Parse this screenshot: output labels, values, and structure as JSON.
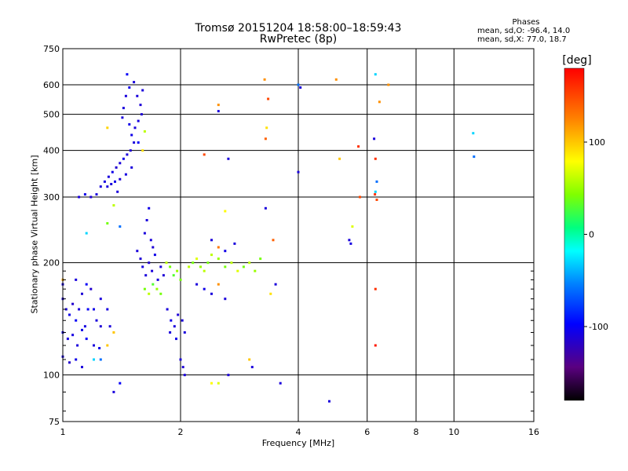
{
  "chart_data": {
    "type": "scatter",
    "title": "Tromsø 20151204 18:58:00–18:59:43",
    "subtitle": "RwPretec (8p)",
    "info": {
      "heading": "Phases",
      "line1": "mean, sd,O: -96.4, 14.0",
      "line2": "mean, sd,X:  77.0, 18.7"
    },
    "xlabel": "Frequency [MHz]",
    "ylabel": "Stationary phase Virtual Height [km]",
    "x_scale": "log",
    "y_scale": "log",
    "xlim": [
      1,
      16
    ],
    "ylim": [
      75,
      750
    ],
    "grid": true,
    "x_ticks": [
      {
        "value": 1,
        "label": "1"
      },
      {
        "value": 2,
        "label": "2"
      },
      {
        "value": 4,
        "label": "4"
      },
      {
        "value": 6,
        "label": "6"
      },
      {
        "value": 8,
        "label": "8"
      },
      {
        "value": 10,
        "label": "10"
      },
      {
        "value": 16,
        "label": "16"
      }
    ],
    "y_ticks": [
      {
        "value": 75,
        "label": "75"
      },
      {
        "value": 100,
        "label": "100"
      },
      {
        "value": 200,
        "label": "200"
      },
      {
        "value": 300,
        "label": "300"
      },
      {
        "value": 400,
        "label": "400"
      },
      {
        "value": 500,
        "label": "500"
      },
      {
        "value": 600,
        "label": "600"
      },
      {
        "value": 750,
        "label": "750"
      }
    ],
    "colorbar": {
      "label": "[deg]",
      "range": [
        -180,
        180
      ],
      "ticks": [
        {
          "value": 100,
          "label": "100"
        },
        {
          "value": 0,
          "label": "0"
        },
        {
          "value": -100,
          "label": "-100"
        }
      ]
    },
    "series": [
      {
        "points": [
          [
            1.0,
            160,
            -110
          ],
          [
            1.02,
            150,
            -110
          ],
          [
            1.04,
            145,
            -105
          ],
          [
            1.06,
            155,
            -115
          ],
          [
            1.08,
            140,
            -100
          ],
          [
            1.1,
            150,
            -110
          ],
          [
            1.12,
            165,
            -112
          ],
          [
            1.14,
            135,
            -108
          ],
          [
            1.16,
            150,
            -100
          ],
          [
            1.18,
            170,
            -115
          ],
          [
            1.0,
            130,
            -105
          ],
          [
            1.03,
            125,
            -110
          ],
          [
            1.06,
            128,
            -108
          ],
          [
            1.09,
            120,
            -110
          ],
          [
            1.12,
            132,
            -105
          ],
          [
            1.15,
            125,
            -100
          ],
          [
            1.0,
            112,
            -110
          ],
          [
            1.04,
            108,
            -115
          ],
          [
            1.08,
            110,
            -105
          ],
          [
            1.12,
            105,
            -110
          ],
          [
            1.2,
            150,
            -105
          ],
          [
            1.22,
            140,
            -110
          ],
          [
            1.25,
            135,
            -112
          ],
          [
            1.2,
            120,
            -110
          ],
          [
            1.24,
            118,
            -105
          ],
          [
            1.08,
            180,
            -110
          ],
          [
            1.15,
            175,
            -100
          ],
          [
            1.25,
            160,
            -110
          ],
          [
            1.3,
            150,
            -108
          ],
          [
            1.32,
            135,
            -110
          ],
          [
            1.1,
            300,
            -110
          ],
          [
            1.14,
            305,
            -105
          ],
          [
            1.18,
            300,
            -112
          ],
          [
            1.22,
            305,
            -110
          ],
          [
            1.25,
            320,
            -110
          ],
          [
            1.28,
            330,
            -108
          ],
          [
            1.31,
            340,
            -110
          ],
          [
            1.34,
            350,
            -105
          ],
          [
            1.37,
            360,
            -115
          ],
          [
            1.3,
            320,
            -110
          ],
          [
            1.33,
            325,
            -110
          ],
          [
            1.36,
            330,
            -105
          ],
          [
            1.4,
            335,
            -112
          ],
          [
            1.4,
            370,
            -110
          ],
          [
            1.43,
            380,
            -105
          ],
          [
            1.46,
            390,
            -110
          ],
          [
            1.49,
            400,
            -112
          ],
          [
            1.52,
            420,
            -110
          ],
          [
            1.5,
            440,
            -105
          ],
          [
            1.53,
            460,
            -110
          ],
          [
            1.56,
            480,
            -108
          ],
          [
            1.59,
            500,
            -112
          ],
          [
            1.56,
            420,
            -100
          ],
          [
            1.43,
            520,
            -110
          ],
          [
            1.45,
            560,
            -110
          ],
          [
            1.48,
            590,
            -105
          ],
          [
            1.55,
            560,
            -110
          ],
          [
            1.58,
            530,
            -112
          ],
          [
            1.46,
            640,
            -100
          ],
          [
            1.52,
            610,
            -110
          ],
          [
            1.6,
            580,
            -110
          ],
          [
            1.62,
            450,
            60
          ],
          [
            1.6,
            400,
            90
          ],
          [
            1.42,
            490,
            -110
          ],
          [
            1.5,
            360,
            -110
          ],
          [
            1.45,
            345,
            -108
          ],
          [
            1.38,
            310,
            -110
          ],
          [
            1.48,
            470,
            -105
          ],
          [
            1.3,
            460,
            95
          ],
          [
            1.35,
            285,
            60
          ],
          [
            1.3,
            255,
            40
          ],
          [
            1.35,
            90,
            -110
          ],
          [
            1.4,
            95,
            -100
          ],
          [
            1.55,
            215,
            -110
          ],
          [
            1.58,
            205,
            -112
          ],
          [
            1.6,
            195,
            -108
          ],
          [
            1.63,
            185,
            -110
          ],
          [
            1.66,
            200,
            -115
          ],
          [
            1.69,
            190,
            -110
          ],
          [
            1.72,
            210,
            -105
          ],
          [
            1.75,
            180,
            -110
          ],
          [
            1.78,
            195,
            -110
          ],
          [
            1.81,
            185,
            -112
          ],
          [
            1.62,
            240,
            -110
          ],
          [
            1.64,
            260,
            -110
          ],
          [
            1.66,
            280,
            -105
          ],
          [
            1.68,
            230,
            -110
          ],
          [
            1.7,
            220,
            -112
          ],
          [
            1.62,
            170,
            40
          ],
          [
            1.66,
            165,
            60
          ],
          [
            1.7,
            175,
            30
          ],
          [
            1.74,
            170,
            50
          ],
          [
            1.78,
            165,
            40
          ],
          [
            1.84,
            200,
            60
          ],
          [
            1.88,
            195,
            40
          ],
          [
            1.92,
            185,
            30
          ],
          [
            1.96,
            190,
            50
          ],
          [
            2.0,
            180,
            40
          ],
          [
            1.85,
            150,
            -110
          ],
          [
            1.89,
            140,
            -105
          ],
          [
            1.93,
            135,
            -110
          ],
          [
            1.97,
            145,
            -112
          ],
          [
            2.02,
            140,
            -110
          ],
          [
            1.88,
            130,
            -110
          ],
          [
            1.95,
            125,
            -105
          ],
          [
            2.05,
            130,
            -110
          ],
          [
            2.0,
            110,
            -110
          ],
          [
            2.03,
            105,
            -112
          ],
          [
            2.05,
            100,
            -110
          ],
          [
            2.1,
            195,
            60
          ],
          [
            2.15,
            200,
            40
          ],
          [
            2.2,
            205,
            70
          ],
          [
            2.25,
            195,
            50
          ],
          [
            2.3,
            190,
            60
          ],
          [
            2.35,
            200,
            40
          ],
          [
            2.4,
            210,
            60
          ],
          [
            2.5,
            205,
            50
          ],
          [
            2.6,
            195,
            40
          ],
          [
            2.7,
            200,
            60
          ],
          [
            2.8,
            190,
            70
          ],
          [
            2.9,
            195,
            40
          ],
          [
            3.0,
            200,
            60
          ],
          [
            3.1,
            190,
            50
          ],
          [
            3.2,
            205,
            40
          ],
          [
            2.2,
            175,
            -110
          ],
          [
            2.3,
            170,
            -105
          ],
          [
            2.4,
            165,
            -110
          ],
          [
            2.5,
            175,
            120
          ],
          [
            2.6,
            160,
            -110
          ],
          [
            2.4,
            230,
            -110
          ],
          [
            2.5,
            220,
            130
          ],
          [
            2.6,
            215,
            -105
          ],
          [
            2.75,
            225,
            -110
          ],
          [
            2.65,
            100,
            -110
          ],
          [
            2.4,
            95,
            80
          ],
          [
            2.5,
            95,
            70
          ],
          [
            3.0,
            110,
            100
          ],
          [
            3.05,
            105,
            -110
          ],
          [
            2.6,
            275,
            80
          ],
          [
            2.3,
            390,
            150
          ],
          [
            2.5,
            530,
            120
          ],
          [
            2.5,
            510,
            -110
          ],
          [
            2.65,
            380,
            -110
          ],
          [
            3.3,
            430,
            140
          ],
          [
            3.32,
            460,
            90
          ],
          [
            3.28,
            620,
            120
          ],
          [
            3.35,
            550,
            150
          ],
          [
            3.3,
            280,
            -110
          ],
          [
            3.45,
            230,
            140
          ],
          [
            3.4,
            165,
            90
          ],
          [
            3.5,
            175,
            -110
          ],
          [
            3.6,
            95,
            -110
          ],
          [
            4.0,
            600,
            -60
          ],
          [
            4.05,
            590,
            -110
          ],
          [
            4.0,
            350,
            -110
          ],
          [
            4.8,
            85,
            -110
          ],
          [
            5.0,
            620,
            120
          ],
          [
            5.1,
            380,
            100
          ],
          [
            5.4,
            230,
            -110
          ],
          [
            5.45,
            225,
            -108
          ],
          [
            5.5,
            250,
            70
          ],
          [
            5.7,
            410,
            160
          ],
          [
            5.75,
            300,
            150
          ],
          [
            6.3,
            640,
            -30
          ],
          [
            6.25,
            430,
            -110
          ],
          [
            6.3,
            380,
            160
          ],
          [
            6.35,
            330,
            -60
          ],
          [
            6.3,
            310,
            -30
          ],
          [
            6.28,
            305,
            160
          ],
          [
            6.35,
            295,
            150
          ],
          [
            6.3,
            170,
            160
          ],
          [
            6.3,
            120,
            170
          ],
          [
            6.8,
            600,
            120
          ],
          [
            6.45,
            540,
            120
          ],
          [
            11.2,
            445,
            -30
          ],
          [
            11.25,
            385,
            -60
          ],
          [
            1.0,
            180,
            110
          ],
          [
            1.0,
            175,
            -110
          ],
          [
            1.2,
            110,
            -30
          ],
          [
            1.25,
            110,
            -60
          ],
          [
            1.15,
            240,
            -30
          ],
          [
            1.4,
            250,
            -60
          ],
          [
            1.35,
            130,
            100
          ],
          [
            1.3,
            120,
            100
          ]
        ]
      }
    ]
  }
}
